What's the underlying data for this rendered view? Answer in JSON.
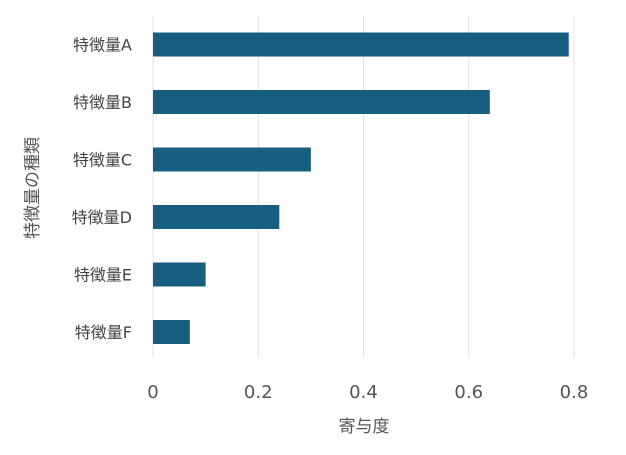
{
  "chart_data": {
    "type": "bar",
    "orientation": "horizontal",
    "categories": [
      "特徴量A",
      "特徴量B",
      "特徴量C",
      "特徴量D",
      "特徴量E",
      "特徴量F"
    ],
    "values": [
      0.79,
      0.64,
      0.3,
      0.24,
      0.1,
      0.07
    ],
    "xlabel": "寄与度",
    "ylabel": "特徴量の種類",
    "xlim": [
      0,
      0.8
    ],
    "xticks": [
      0,
      0.2,
      0.4,
      0.6,
      0.8
    ],
    "xtick_labels": [
      "0",
      "0.2",
      "0.4",
      "0.6",
      "0.8"
    ],
    "grid": "vertical",
    "colors": {
      "bar": "#175e81",
      "grid": "#e3e3e3"
    }
  }
}
